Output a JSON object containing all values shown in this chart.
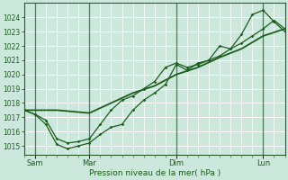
{
  "background_color": "#cce8dc",
  "line_color": "#1a5c1a",
  "grid_color": "#b8ddd0",
  "ylim": [
    1014.4,
    1025.0
  ],
  "xlim": [
    0,
    72
  ],
  "yticks": [
    1015,
    1016,
    1017,
    1018,
    1019,
    1020,
    1021,
    1022,
    1023,
    1024
  ],
  "xtick_positions": [
    3,
    18,
    42,
    66
  ],
  "xtick_labels": [
    "Sam",
    "Mar",
    "Dim",
    "Lun"
  ],
  "vline_positions": [
    3,
    18,
    42,
    66
  ],
  "xlabel": "Pression niveau de la mer( hPa )",
  "s1_x": [
    0,
    3,
    6,
    9,
    12,
    15,
    18,
    21,
    24,
    27,
    30,
    33,
    36,
    39,
    42,
    45,
    48,
    51,
    54,
    57,
    60,
    63,
    66,
    69,
    72
  ],
  "s1_y": [
    1017.5,
    1017.2,
    1016.5,
    1015.1,
    1014.8,
    1015.0,
    1015.2,
    1015.8,
    1016.3,
    1016.5,
    1017.5,
    1018.2,
    1018.7,
    1019.3,
    1020.7,
    1020.3,
    1020.8,
    1021.0,
    1022.0,
    1021.8,
    1022.8,
    1024.2,
    1024.5,
    1023.7,
    1023.0
  ],
  "s2_x": [
    0,
    3,
    6,
    9,
    12,
    15,
    18,
    21,
    24,
    27,
    30,
    33,
    36,
    39,
    42,
    45,
    48,
    51,
    54,
    57,
    60,
    63,
    66,
    69,
    72
  ],
  "s2_y": [
    1017.5,
    1017.2,
    1016.8,
    1015.5,
    1015.2,
    1015.3,
    1015.5,
    1016.5,
    1017.5,
    1018.2,
    1018.5,
    1019.0,
    1019.5,
    1020.5,
    1020.8,
    1020.5,
    1020.7,
    1021.0,
    1021.3,
    1021.8,
    1022.2,
    1022.7,
    1023.2,
    1023.8,
    1023.2
  ],
  "s3_x": [
    0,
    9,
    18,
    24,
    30,
    36,
    42,
    48,
    54,
    60,
    66,
    72
  ],
  "s3_y": [
    1017.5,
    1017.5,
    1017.3,
    1018.0,
    1018.7,
    1019.2,
    1020.0,
    1020.5,
    1021.2,
    1021.8,
    1022.7,
    1023.2
  ]
}
